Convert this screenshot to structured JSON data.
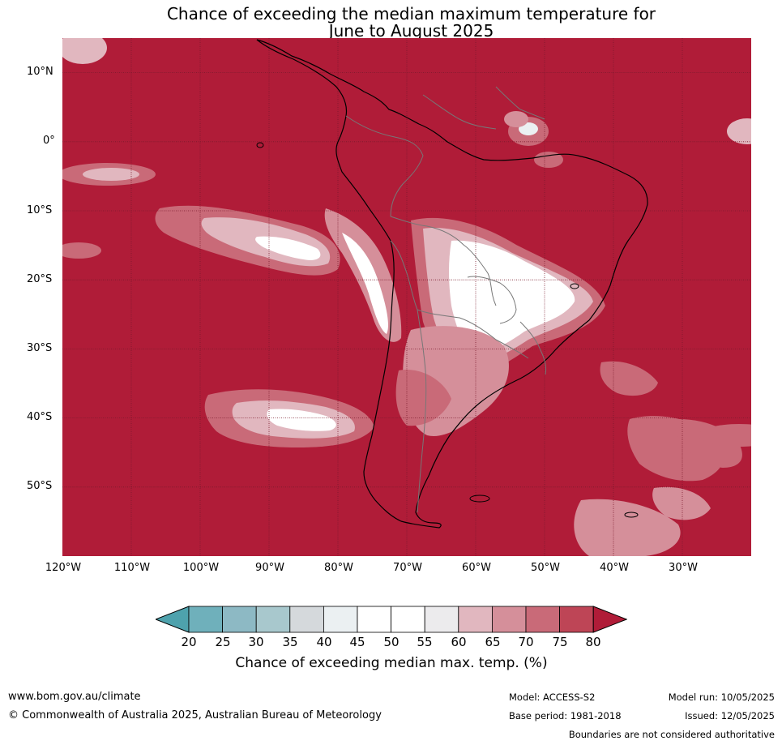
{
  "title": {
    "line1": "Chance of exceeding the median maximum temperature for",
    "line2": "June to August 2025"
  },
  "map": {
    "region": "South America",
    "lon_range": [
      -120,
      -20
    ],
    "lat_range": [
      -60,
      15
    ],
    "lat_ticks": [
      "10°N",
      "0°",
      "10°S",
      "20°S",
      "30°S",
      "40°S",
      "50°S"
    ],
    "lon_ticks": [
      "120°W",
      "110°W",
      "100°W",
      "90°W",
      "80°W",
      "70°W",
      "60°W",
      "50°W",
      "40°W",
      "30°W"
    ],
    "background_color": "#b01c38",
    "gridlines": true
  },
  "colorbar": {
    "label": "Chance of exceeding median max. temp. (%)",
    "ticks": [
      "20",
      "25",
      "30",
      "35",
      "40",
      "45",
      "50",
      "55",
      "60",
      "65",
      "70",
      "75",
      "80"
    ],
    "colors": [
      "#4ea2ad",
      "#6fb0bb",
      "#8db9c4",
      "#a8c8cd",
      "#d5d9dc",
      "#ebf0f2",
      "#ffffff",
      "#ffffff",
      "#ecebed",
      "#e1b7bf",
      "#d58f9a",
      "#c96a78",
      "#be4556",
      "#b01c38"
    ],
    "extend": "both"
  },
  "footer": {
    "website": "www.bom.gov.au/climate",
    "copyright": "© Commonwealth of Australia 2025, Australian Bureau of Meteorology",
    "model": "Model: ACCESS-S2",
    "base_period": "Base period: 1981-2018",
    "model_run": "Model run: 10/05/2025",
    "issued": "Issued: 12/05/2025",
    "boundaries_note": "Boundaries are not considered authoritative"
  }
}
